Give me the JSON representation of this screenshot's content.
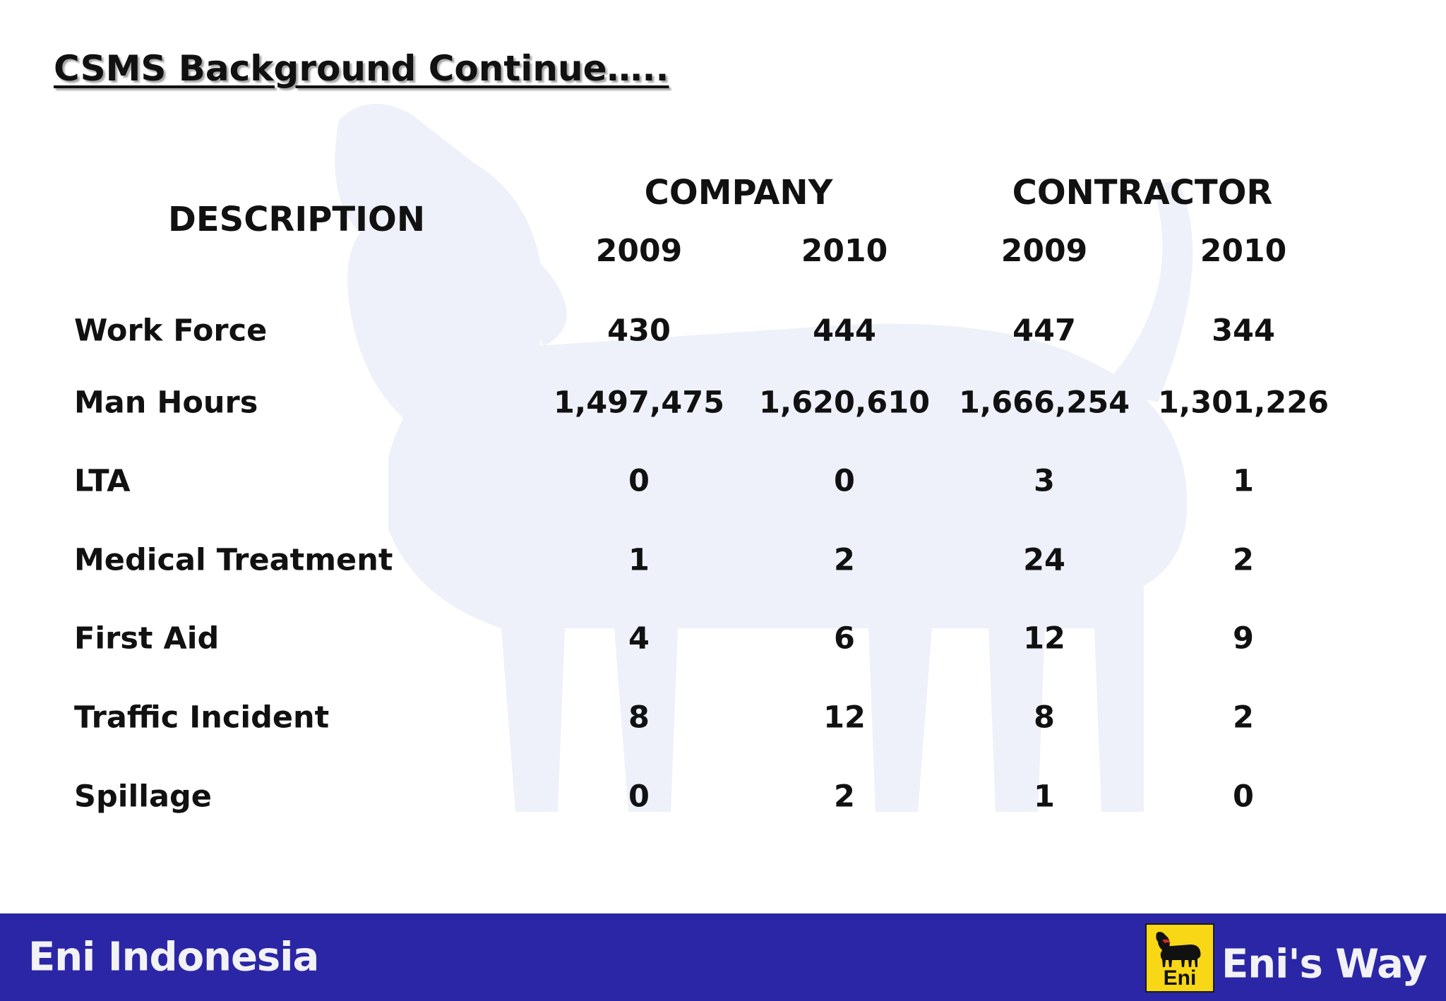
{
  "slide": {
    "title": "CSMS Background Continue….."
  },
  "table": {
    "description_header": "DESCRIPTION",
    "groups": [
      "COMPANY",
      "CONTRACTOR"
    ],
    "years": [
      "2009",
      "2010",
      "2009",
      "2010"
    ],
    "rows": [
      {
        "label": "Work Force",
        "values": [
          "430",
          "444",
          "447",
          "344"
        ]
      },
      {
        "label": "Man Hours",
        "values": [
          "1,497,475",
          "1,620,610",
          "1,666,254",
          "1,301,226"
        ]
      },
      {
        "label": "LTA",
        "values": [
          "0",
          "0",
          "3",
          "1"
        ]
      },
      {
        "label": "Medical Treatment",
        "values": [
          "1",
          "2",
          "24",
          "2"
        ]
      },
      {
        "label": "First Aid",
        "values": [
          "4",
          "6",
          "12",
          "9"
        ]
      },
      {
        "label": "Traffic Incident",
        "values": [
          "8",
          "12",
          "8",
          "2"
        ]
      },
      {
        "label": "Spillage",
        "values": [
          "0",
          "2",
          "1",
          "0"
        ]
      }
    ]
  },
  "footer": {
    "left_text": "Eni Indonesia",
    "logo_text": "Eni",
    "right_text": "Eni's Way",
    "bar_color": "#2b26a6",
    "logo_color": "#f7d716"
  },
  "background": {
    "watermark_icon": "six-legged-dog-icon"
  }
}
